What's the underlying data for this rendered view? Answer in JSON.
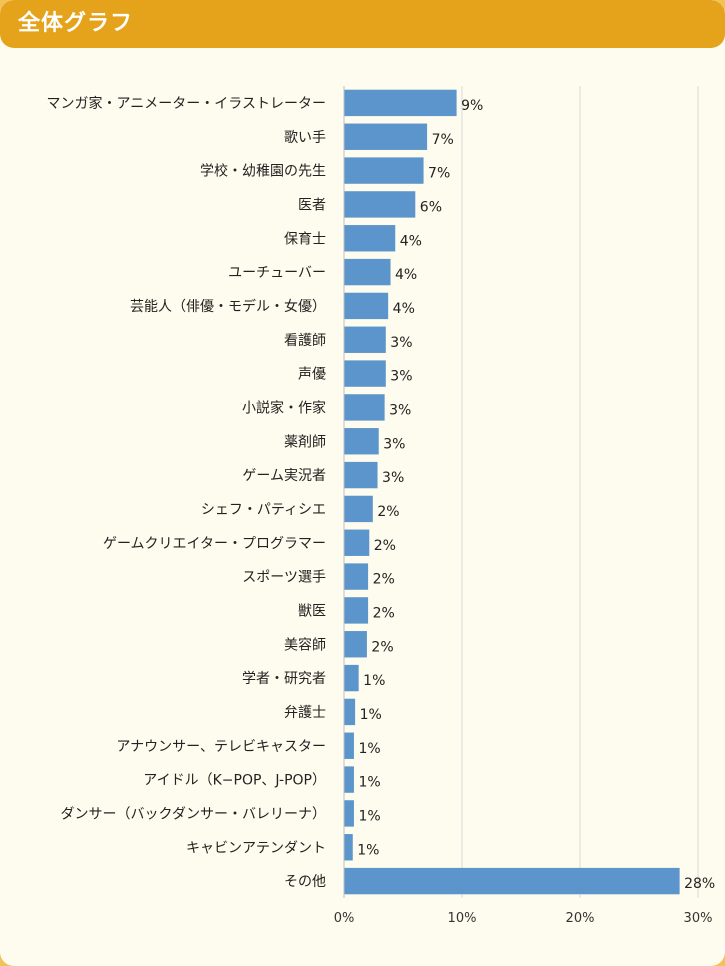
{
  "header": {
    "title": "全体グラフ"
  },
  "colors": {
    "bar": "#5b95cb",
    "header": "#e5a21b",
    "background": "#fefcee",
    "grid": "#d8d8d8"
  },
  "chart_data": {
    "type": "bar",
    "orientation": "horizontal",
    "title": "",
    "xlabel": "",
    "ylabel": "",
    "xlim": [
      0,
      30
    ],
    "x_ticks": [
      0,
      10,
      20,
      30
    ],
    "x_tick_labels": [
      "0%",
      "10%",
      "20%",
      "30%"
    ],
    "grid": "vertical",
    "categories": [
      "マンガ家・アニメーター・イラストレーター",
      "歌い手",
      "学校・幼稚園の先生",
      "医者",
      "保育士",
      "ユーチューバー",
      "芸能人（俳優・モデル・女優）",
      "看護師",
      "声優",
      "小説家・作家",
      "薬剤師",
      "ゲーム実況者",
      "シェフ・パティシエ",
      "ゲームクリエイター・プログラマー",
      "スポーツ選手",
      "獣医",
      "美容師",
      "学者・研究者",
      "弁護士",
      "アナウンサー、テレビキャスター",
      "アイドル（K−POP、J-POP）",
      "ダンサー（バックダンサー・バレリーナ）",
      "キャビンアテンダント",
      "その他"
    ],
    "values": [
      9.5,
      7.0,
      6.7,
      6.0,
      4.3,
      3.9,
      3.7,
      3.5,
      3.5,
      3.4,
      2.9,
      2.8,
      2.4,
      2.1,
      2.0,
      2.0,
      1.9,
      1.2,
      0.9,
      0.8,
      0.8,
      0.8,
      0.7,
      28.4
    ],
    "data_labels": [
      "9%",
      "7%",
      "7%",
      "6%",
      "4%",
      "4%",
      "4%",
      "3%",
      "3%",
      "3%",
      "3%",
      "3%",
      "2%",
      "2%",
      "2%",
      "2%",
      "2%",
      "1%",
      "1%",
      "1%",
      "1%",
      "1%",
      "1%",
      "28%"
    ]
  }
}
